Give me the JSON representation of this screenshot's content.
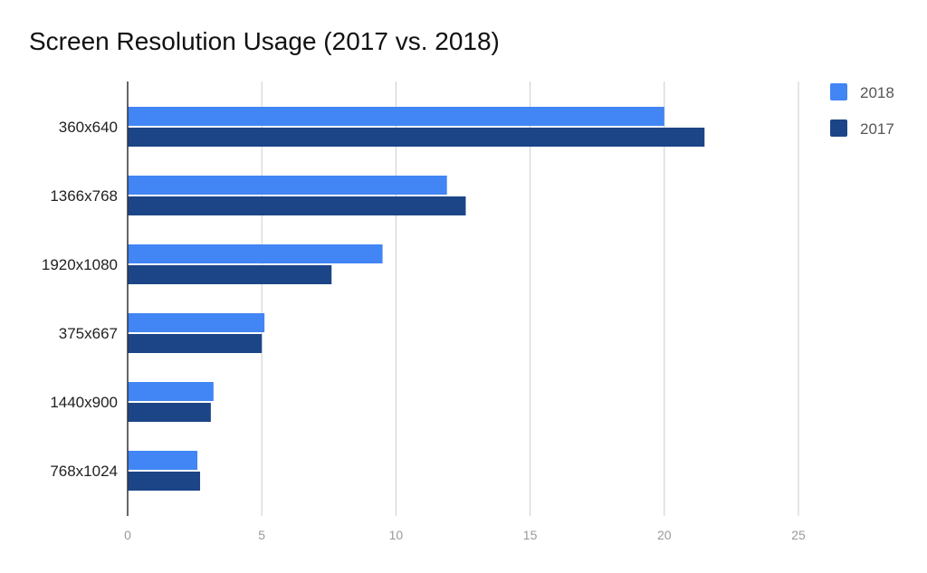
{
  "chart_data": {
    "type": "bar",
    "orientation": "horizontal",
    "title": "Screen Resolution Usage (2017 vs. 2018)",
    "categories": [
      "360x640",
      "1366x768",
      "1920x1080",
      "375x667",
      "1440x900",
      "768x1024"
    ],
    "series": [
      {
        "name": "2018",
        "color": "#4285f4",
        "values": [
          20.0,
          11.9,
          9.5,
          5.1,
          3.2,
          2.6
        ]
      },
      {
        "name": "2017",
        "color": "#1c4587",
        "values": [
          21.5,
          12.6,
          7.6,
          5.0,
          3.1,
          2.7
        ]
      }
    ],
    "xlim": [
      0,
      25
    ],
    "xticks": [
      "0",
      "5",
      "10",
      "15",
      "20",
      "25"
    ],
    "grid": "vertical",
    "legend": "right"
  }
}
